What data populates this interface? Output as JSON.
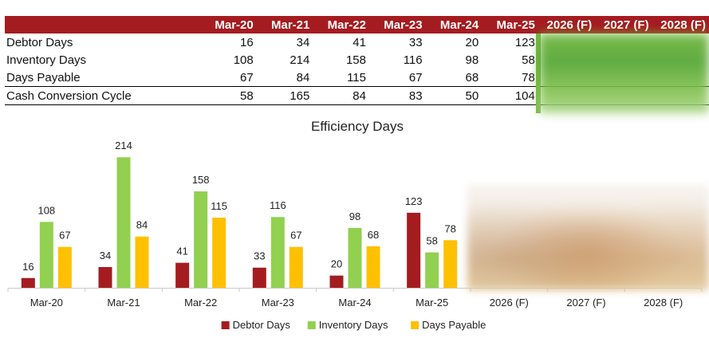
{
  "table": {
    "headers": [
      "Mar-20",
      "Mar-21",
      "Mar-22",
      "Mar-23",
      "Mar-24",
      "Mar-25",
      "2026 (F)",
      "2027 (F)",
      "2028 (F)"
    ],
    "rows": [
      {
        "label": "Debtor Days",
        "values": [
          "16",
          "34",
          "41",
          "33",
          "20",
          "123"
        ]
      },
      {
        "label": "Inventory Days",
        "values": [
          "108",
          "214",
          "158",
          "116",
          "98",
          "58"
        ]
      },
      {
        "label": "Days Payable",
        "values": [
          "67",
          "84",
          "115",
          "67",
          "68",
          "78"
        ]
      },
      {
        "label": "Cash Conversion Cycle",
        "values": [
          "58",
          "165",
          "84",
          "83",
          "50",
          "104"
        ]
      }
    ]
  },
  "chart_data": {
    "type": "bar",
    "title": "Efficiency Days",
    "categories": [
      "Mar-20",
      "Mar-21",
      "Mar-22",
      "Mar-23",
      "Mar-24",
      "Mar-25",
      "2026 (F)",
      "2027 (F)",
      "2028 (F)"
    ],
    "series": [
      {
        "name": "Debtor Days",
        "color": "#a51c20",
        "values": [
          16,
          34,
          41,
          33,
          20,
          123,
          null,
          null,
          null
        ]
      },
      {
        "name": "Inventory Days",
        "color": "#92d050",
        "values": [
          108,
          214,
          158,
          116,
          98,
          58,
          null,
          null,
          null
        ]
      },
      {
        "name": "Days Payable",
        "color": "#ffc000",
        "values": [
          67,
          84,
          115,
          67,
          68,
          78,
          null,
          null,
          null
        ]
      }
    ],
    "xlabel": "",
    "ylabel": "",
    "ylim": [
      0,
      230
    ],
    "legend_position": "bottom",
    "data_labels": true
  }
}
